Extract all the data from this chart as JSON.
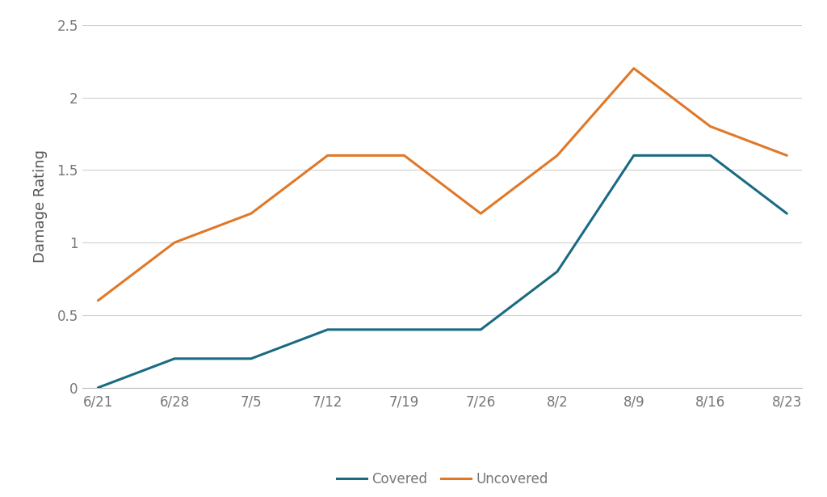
{
  "x_labels": [
    "6/21",
    "6/28",
    "7/5",
    "7/12",
    "7/19",
    "7/26",
    "8/2",
    "8/9",
    "8/16",
    "8/23"
  ],
  "covered": [
    0.0,
    0.2,
    0.2,
    0.4,
    0.4,
    0.4,
    0.8,
    1.6,
    1.6,
    1.2
  ],
  "uncovered": [
    0.6,
    1.0,
    1.2,
    1.6,
    1.6,
    1.2,
    1.6,
    2.2,
    1.8,
    1.6
  ],
  "covered_color": "#1a6b82",
  "uncovered_color": "#e07828",
  "ylabel": "Damage Rating",
  "ylim": [
    0,
    2.5
  ],
  "yticks": [
    0,
    0.5,
    1.0,
    1.5,
    2.0,
    2.5
  ],
  "ytick_labels": [
    "0",
    "0.5",
    "1",
    "1.5",
    "2",
    "2.5"
  ],
  "legend_covered": "Covered",
  "legend_uncovered": "Uncovered",
  "line_width": 2.2,
  "background_color": "#ffffff",
  "grid_color": "#d0d0d0",
  "label_fontsize": 13,
  "tick_fontsize": 12,
  "legend_fontsize": 12,
  "tick_color": "#777777",
  "label_color": "#555555"
}
